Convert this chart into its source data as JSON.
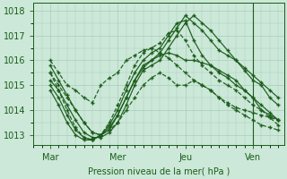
{
  "background_color": "#cce8d8",
  "plot_bg_color": "#cce8d8",
  "grid_color": "#aaccbb",
  "line_color": "#1a5c1a",
  "xlabel": "Pression niveau de la mer( hPa )",
  "xlabel_color": "#1a5c1a",
  "xtick_labels": [
    "Mar",
    "Mer",
    "Jeu",
    "Ven"
  ],
  "xtick_positions": [
    12,
    60,
    108,
    156
  ],
  "ytick_labels": [
    "1013",
    "1014",
    "1015",
    "1016",
    "1017",
    "1018"
  ],
  "ytick_values": [
    1013,
    1014,
    1015,
    1016,
    1017,
    1018
  ],
  "ylim": [
    1012.6,
    1018.3
  ],
  "xlim": [
    0,
    178
  ],
  "vline_x": 156,
  "series": [
    {
      "x": [
        12,
        18,
        24,
        30,
        36,
        42,
        48,
        54,
        60,
        66,
        72,
        78,
        84,
        90,
        96,
        102,
        108,
        114,
        120,
        126,
        132,
        138,
        144,
        150,
        156,
        162,
        168,
        174
      ],
      "y": [
        1016.0,
        1015.5,
        1015.0,
        1014.8,
        1014.5,
        1014.3,
        1015.0,
        1015.3,
        1015.5,
        1016.0,
        1016.2,
        1016.4,
        1016.5,
        1016.3,
        1016.1,
        1015.8,
        1015.5,
        1015.2,
        1015.0,
        1014.8,
        1014.5,
        1014.3,
        1014.1,
        1014.0,
        1013.9,
        1013.8,
        1013.7,
        1013.6
      ],
      "style": "--"
    },
    {
      "x": [
        12,
        18,
        24,
        30,
        36,
        42,
        48,
        54,
        60,
        66,
        72,
        78,
        84,
        90,
        96,
        102,
        108,
        114,
        120,
        126,
        132,
        138,
        144,
        150,
        156,
        162,
        168,
        174
      ],
      "y": [
        1015.5,
        1015.0,
        1014.5,
        1014.0,
        1013.5,
        1013.1,
        1013.0,
        1013.2,
        1013.5,
        1014.0,
        1014.5,
        1015.0,
        1015.3,
        1015.5,
        1015.3,
        1015.0,
        1015.0,
        1015.2,
        1015.0,
        1014.8,
        1014.5,
        1014.2,
        1014.0,
        1013.8,
        1013.6,
        1013.4,
        1013.3,
        1013.2
      ],
      "style": "--"
    },
    {
      "x": [
        12,
        18,
        24,
        30,
        36,
        42,
        48,
        54,
        60,
        66,
        72,
        78,
        84,
        90,
        96,
        102,
        108,
        114,
        120,
        126,
        132,
        138,
        144,
        150,
        156,
        162,
        168,
        174
      ],
      "y": [
        1015.8,
        1015.2,
        1014.6,
        1014.0,
        1013.5,
        1013.1,
        1013.0,
        1013.2,
        1013.8,
        1014.5,
        1015.2,
        1015.8,
        1016.0,
        1016.2,
        1016.3,
        1016.2,
        1016.0,
        1016.0,
        1015.9,
        1015.8,
        1015.6,
        1015.4,
        1015.2,
        1014.8,
        1014.5,
        1014.0,
        1013.8,
        1013.6
      ],
      "style": "-"
    },
    {
      "x": [
        12,
        18,
        24,
        30,
        36,
        42,
        48,
        54,
        60,
        66,
        72,
        78,
        84,
        90,
        96,
        102,
        108,
        114,
        120,
        126,
        132,
        138,
        144,
        150,
        156,
        162,
        168,
        174
      ],
      "y": [
        1015.2,
        1014.8,
        1014.2,
        1013.6,
        1013.1,
        1012.9,
        1012.9,
        1013.1,
        1013.5,
        1014.2,
        1015.0,
        1015.6,
        1015.8,
        1016.0,
        1016.5,
        1017.0,
        1017.5,
        1017.8,
        1017.5,
        1017.2,
        1016.8,
        1016.4,
        1016.0,
        1015.6,
        1015.2,
        1015.0,
        1014.5,
        1014.2
      ],
      "style": "-"
    },
    {
      "x": [
        12,
        18,
        24,
        30,
        36,
        42,
        48,
        54,
        60,
        66,
        72,
        78,
        84,
        90,
        96,
        102,
        108,
        114,
        120,
        126,
        132,
        138,
        144,
        150,
        156,
        162,
        168,
        174
      ],
      "y": [
        1015.0,
        1014.5,
        1013.8,
        1013.2,
        1012.9,
        1012.8,
        1013.0,
        1013.3,
        1013.8,
        1014.5,
        1015.2,
        1015.7,
        1016.0,
        1016.3,
        1016.8,
        1017.3,
        1017.8,
        1017.5,
        1017.2,
        1016.8,
        1016.4,
        1016.2,
        1016.0,
        1015.7,
        1015.4,
        1015.1,
        1014.8,
        1014.5
      ],
      "style": "-"
    },
    {
      "x": [
        12,
        18,
        24,
        30,
        36,
        42,
        48,
        54,
        60,
        66,
        72,
        78,
        84,
        90,
        96,
        102,
        108,
        114,
        120,
        126,
        132,
        138,
        144,
        150,
        156,
        162,
        168,
        174
      ],
      "y": [
        1014.8,
        1014.2,
        1013.5,
        1013.0,
        1012.8,
        1012.8,
        1013.0,
        1013.4,
        1014.0,
        1014.8,
        1015.5,
        1016.0,
        1016.3,
        1016.5,
        1017.0,
        1017.5,
        1017.6,
        1016.8,
        1016.2,
        1015.8,
        1015.5,
        1015.3,
        1015.0,
        1014.8,
        1014.5,
        1014.2,
        1013.9,
        1013.6
      ],
      "style": "-"
    },
    {
      "x": [
        12,
        18,
        24,
        30,
        36,
        42,
        48,
        54,
        60,
        66,
        72,
        78,
        84,
        90,
        96,
        102,
        108,
        114,
        120,
        126,
        132,
        138,
        144,
        150,
        156,
        162,
        168,
        174
      ],
      "y": [
        1015.5,
        1014.8,
        1014.0,
        1013.3,
        1012.9,
        1012.8,
        1013.0,
        1013.5,
        1014.2,
        1015.0,
        1015.8,
        1016.3,
        1016.5,
        1016.7,
        1017.1,
        1017.2,
        1016.8,
        1016.2,
        1015.8,
        1015.5,
        1015.2,
        1015.0,
        1014.8,
        1014.5,
        1014.2,
        1014.0,
        1013.7,
        1013.4
      ],
      "style": "--"
    }
  ]
}
